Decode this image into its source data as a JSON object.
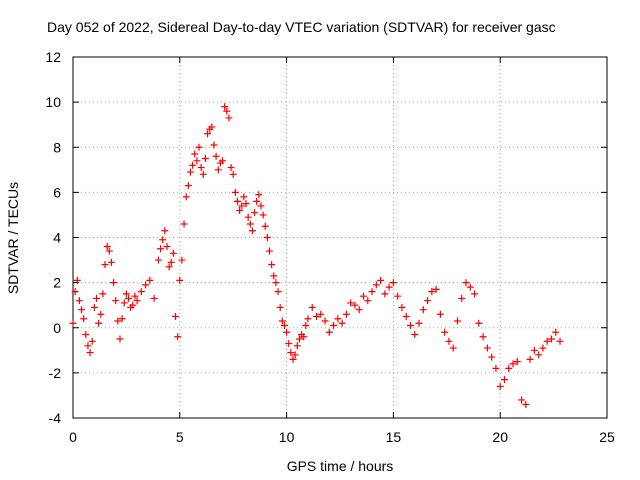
{
  "chart_data": {
    "type": "scatter",
    "title": "Day 052 of 2022, Sidereal Day-to-day VTEC variation (SDTVAR) for receiver gasc",
    "xlabel": "GPS time / hours",
    "ylabel": "SDTVAR / TECUs",
    "xlim": [
      0,
      25
    ],
    "ylim": [
      -4,
      12
    ],
    "xticks": [
      0,
      5,
      10,
      15,
      20,
      25
    ],
    "yticks": [
      -4,
      -2,
      0,
      2,
      4,
      6,
      8,
      10,
      12
    ],
    "grid": true,
    "marker": "+",
    "color": "#ff0000",
    "series": [
      {
        "name": "SDTVAR",
        "x": [
          0.0,
          0.1,
          0.2,
          0.3,
          0.4,
          0.5,
          0.6,
          0.7,
          0.8,
          0.9,
          1.0,
          1.1,
          1.2,
          1.3,
          1.4,
          1.5,
          1.6,
          1.7,
          1.8,
          1.9,
          2.0,
          2.1,
          2.2,
          2.3,
          2.4,
          2.5,
          2.6,
          2.7,
          2.8,
          2.9,
          3.0,
          3.2,
          3.4,
          3.6,
          3.8,
          4.0,
          4.1,
          4.2,
          4.3,
          4.4,
          4.5,
          4.6,
          4.7,
          4.8,
          4.9,
          5.0,
          5.1,
          5.2,
          5.3,
          5.4,
          5.5,
          5.6,
          5.7,
          5.8,
          5.9,
          6.0,
          6.1,
          6.2,
          6.3,
          6.4,
          6.5,
          6.6,
          6.7,
          6.8,
          6.9,
          7.0,
          7.1,
          7.2,
          7.3,
          7.4,
          7.5,
          7.6,
          7.7,
          7.8,
          7.9,
          8.0,
          8.1,
          8.2,
          8.3,
          8.4,
          8.5,
          8.6,
          8.7,
          8.8,
          8.9,
          9.0,
          9.1,
          9.2,
          9.3,
          9.4,
          9.5,
          9.6,
          9.7,
          9.8,
          9.9,
          10.0,
          10.1,
          10.2,
          10.3,
          10.4,
          10.5,
          10.6,
          10.7,
          10.8,
          10.9,
          11.0,
          11.2,
          11.4,
          11.6,
          11.8,
          12.0,
          12.2,
          12.4,
          12.6,
          12.8,
          13.0,
          13.2,
          13.4,
          13.6,
          13.8,
          14.0,
          14.2,
          14.4,
          14.6,
          14.8,
          15.0,
          15.2,
          15.4,
          15.6,
          15.8,
          16.0,
          16.2,
          16.4,
          16.6,
          16.8,
          17.0,
          17.2,
          17.4,
          17.6,
          17.8,
          18.0,
          18.2,
          18.4,
          18.6,
          18.8,
          19.0,
          19.2,
          19.4,
          19.6,
          19.8,
          20.0,
          20.2,
          20.4,
          20.6,
          20.8,
          21.0,
          21.2,
          21.4,
          21.6,
          21.8,
          22.0,
          22.2,
          22.4,
          22.6,
          22.8
        ],
        "y": [
          0.2,
          1.6,
          2.1,
          1.2,
          0.8,
          0.4,
          -0.3,
          -0.8,
          -1.1,
          -0.6,
          0.9,
          1.3,
          0.2,
          0.6,
          1.5,
          2.8,
          3.6,
          3.4,
          2.9,
          2.0,
          1.2,
          0.3,
          -0.5,
          0.4,
          1.1,
          1.5,
          1.3,
          0.9,
          1.0,
          1.4,
          1.2,
          1.6,
          1.9,
          2.1,
          1.3,
          3.0,
          3.5,
          3.9,
          4.3,
          3.6,
          2.7,
          2.9,
          3.3,
          0.5,
          -0.4,
          2.1,
          3.0,
          4.6,
          5.8,
          6.3,
          6.9,
          7.2,
          7.7,
          7.4,
          8.0,
          7.1,
          6.8,
          7.5,
          8.6,
          8.8,
          8.9,
          8.1,
          7.6,
          7.0,
          7.3,
          7.4,
          9.8,
          9.6,
          9.3,
          7.1,
          6.8,
          6.0,
          5.6,
          5.2,
          5.4,
          5.8,
          5.5,
          4.9,
          4.6,
          4.3,
          5.1,
          5.6,
          5.9,
          5.4,
          5.0,
          4.5,
          4.0,
          3.4,
          2.8,
          2.3,
          2.0,
          1.6,
          0.9,
          0.3,
          0.1,
          -0.2,
          -0.7,
          -1.1,
          -1.4,
          -1.2,
          -0.8,
          -0.5,
          -0.3,
          -0.4,
          0.1,
          0.4,
          0.9,
          0.5,
          0.6,
          0.3,
          -0.2,
          0.1,
          0.4,
          0.2,
          0.6,
          1.1,
          1.0,
          0.8,
          1.4,
          1.2,
          1.6,
          1.9,
          2.1,
          1.5,
          1.8,
          2.0,
          1.4,
          0.9,
          0.5,
          0.1,
          -0.3,
          0.2,
          0.8,
          1.2,
          1.6,
          1.7,
          0.6,
          -0.2,
          -0.6,
          -0.9,
          0.3,
          1.3,
          2.0,
          1.8,
          1.5,
          0.2,
          -0.4,
          -0.9,
          -1.3,
          -1.8,
          -2.6,
          -2.3,
          -1.8,
          -1.6,
          -1.5,
          -3.2,
          -3.4,
          -1.4,
          -1.0,
          -1.2,
          -0.9,
          -0.6,
          -0.5,
          -0.2,
          -0.6
        ]
      }
    ]
  }
}
